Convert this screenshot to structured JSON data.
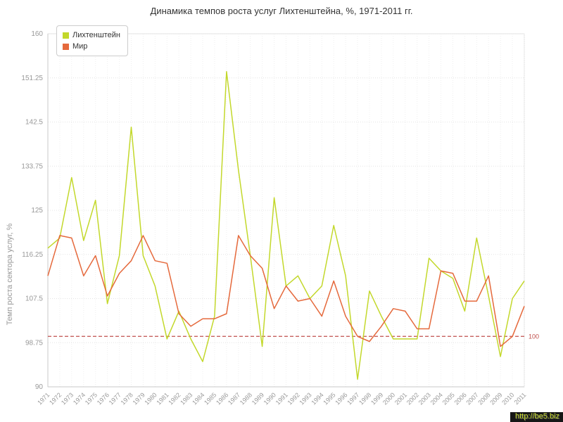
{
  "title": "Динамика темпов роста услуг Лихтенштейна, %, 1971-2011 гг.",
  "watermark": "http://be5.biz",
  "chart_data": {
    "type": "line",
    "title": "Динамика темпов роста услуг Лихтенштейна, %, 1971-2011 гг.",
    "xlabel": "",
    "ylabel": "Темп роста сектора услуг, %",
    "ylim": [
      90,
      160
    ],
    "yticks": [
      90,
      98.75,
      107.5,
      116.25,
      125,
      133.75,
      142.5,
      151.25,
      160
    ],
    "grid": true,
    "legend_position": "top-left",
    "x": [
      1971,
      1972,
      1973,
      1974,
      1975,
      1976,
      1977,
      1978,
      1979,
      1980,
      1981,
      1982,
      1983,
      1984,
      1985,
      1986,
      1987,
      1988,
      1989,
      1990,
      1991,
      1992,
      1993,
      1994,
      1995,
      1996,
      1997,
      1998,
      1999,
      2000,
      2001,
      2002,
      2003,
      2004,
      2005,
      2006,
      2007,
      2008,
      2009,
      2010,
      2011
    ],
    "series": [
      {
        "name": "Лихтенштейн",
        "color": "#c3d82b",
        "values": [
          117.5,
          119.5,
          131.5,
          119,
          127,
          106.5,
          116,
          141.5,
          116,
          110,
          99.5,
          105,
          99.5,
          95,
          104,
          152.5,
          133,
          116,
          98,
          127.5,
          110,
          112,
          107.5,
          110,
          122,
          112,
          91.5,
          109,
          104,
          99.5,
          99.5,
          99.5,
          115.5,
          113,
          111.5,
          105,
          119.5,
          108,
          96,
          107.5,
          111
        ]
      },
      {
        "name": "Мир",
        "color": "#e5693c",
        "values": [
          112,
          120,
          119.5,
          112,
          116,
          108,
          112.5,
          115,
          120,
          115,
          114.5,
          104.5,
          102,
          103.5,
          103.5,
          104.5,
          120,
          116,
          113.5,
          105.5,
          110,
          107,
          107.5,
          104,
          111,
          104,
          100,
          99,
          102,
          105.5,
          105,
          101.5,
          101.5,
          113,
          112.5,
          107,
          107,
          112,
          98,
          100,
          106
        ]
      }
    ],
    "reference_line": {
      "value": 100,
      "label": "100",
      "color": "#c0504d"
    }
  }
}
